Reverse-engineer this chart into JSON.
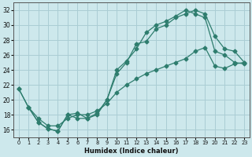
{
  "xlabel": "Humidex (Indice chaleur)",
  "ylabel": "",
  "bg_color": "#cde8ec",
  "line_color": "#2e7d6e",
  "grid_color": "#aacdd4",
  "xlim": [
    -0.5,
    23.5
  ],
  "ylim": [
    15,
    33
  ],
  "yticks": [
    16,
    18,
    20,
    22,
    24,
    26,
    28,
    30,
    32
  ],
  "xticks": [
    0,
    1,
    2,
    3,
    4,
    5,
    6,
    7,
    8,
    9,
    10,
    11,
    12,
    13,
    14,
    15,
    16,
    17,
    18,
    19,
    20,
    21,
    22,
    23
  ],
  "line1_x": [
    0,
    1,
    2,
    3,
    4,
    5,
    6,
    7,
    8,
    9,
    10,
    11,
    12,
    13,
    14,
    15,
    16,
    17,
    18,
    19,
    20,
    21,
    22,
    23
  ],
  "line1_y": [
    21.5,
    19.0,
    17.0,
    16.1,
    15.8,
    18.0,
    18.2,
    17.5,
    18.0,
    20.0,
    23.5,
    25.0,
    27.5,
    27.8,
    29.5,
    30.0,
    31.0,
    31.5,
    32.0,
    31.5,
    28.5,
    26.8,
    26.5,
    25.0
  ],
  "line2_x": [
    0,
    1,
    2,
    3,
    4,
    5,
    6,
    7,
    8,
    9,
    10,
    11,
    12,
    13,
    14,
    15,
    16,
    17,
    18,
    19,
    20,
    21,
    22,
    23
  ],
  "line2_y": [
    21.5,
    19.0,
    17.0,
    16.1,
    15.8,
    18.0,
    17.5,
    17.5,
    18.2,
    20.0,
    24.0,
    25.2,
    26.8,
    29.0,
    30.0,
    30.5,
    31.2,
    32.0,
    31.5,
    31.0,
    26.5,
    26.0,
    25.0,
    24.8
  ],
  "line3_x": [
    1,
    2,
    3,
    4,
    5,
    6,
    7,
    8,
    9,
    10,
    11,
    12,
    13,
    14,
    15,
    16,
    17,
    18,
    19,
    20,
    21,
    22,
    23
  ],
  "line3_y": [
    19.0,
    17.5,
    16.5,
    16.5,
    17.5,
    18.0,
    18.0,
    18.5,
    19.5,
    21.0,
    22.0,
    22.8,
    23.5,
    24.0,
    24.5,
    25.0,
    25.5,
    26.5,
    27.0,
    24.5,
    24.2,
    24.8,
    25.0
  ]
}
